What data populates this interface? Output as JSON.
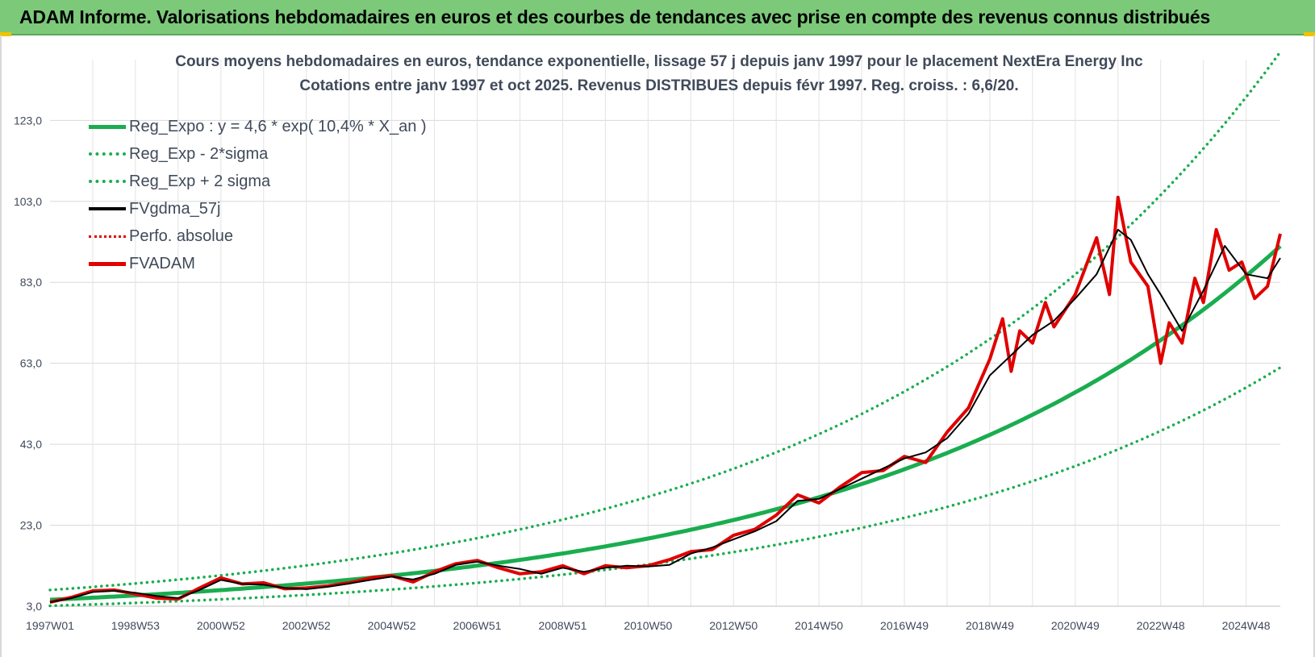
{
  "header": {
    "title": "ADAM Informe. Valorisations hebdomadaires en euros et des courbes de tendances avec prise en compte des revenus connus distribués"
  },
  "chart_data": {
    "type": "line",
    "title": "Cours moyens hebdomadaires en euros, tendance exponentielle, lissage 57 j depuis janv 1997 pour le placement NextEra Energy Inc",
    "subtitle": "Cotations entre janv 1997 et oct 2025. Revenus DISTRIBUES depuis févr 1997. Reg. croiss. : 6,6/20.",
    "xlabel": "",
    "ylabel": "",
    "ylim": [
      3.0,
      138.0
    ],
    "xlim": [
      1997.0,
      2025.8
    ],
    "grid": true,
    "legend_position": "top-left",
    "y_ticks": [
      "3,0",
      "23,0",
      "43,0",
      "63,0",
      "83,0",
      "103,0",
      "123,0"
    ],
    "x_ticks": [
      "1997W01",
      "1998W53",
      "2000W52",
      "2002W52",
      "2004W52",
      "2006W51",
      "2008W51",
      "2010W50",
      "2012W50",
      "2014W50",
      "2016W49",
      "2018W49",
      "2020W49",
      "2022W48",
      "2024W48"
    ],
    "series": [
      {
        "name": "Reg_Expo : y = 4,6 * exp( 10,4% *  X_an )",
        "style": "solid-thick",
        "color": "#1aad4f",
        "formula": {
          "a": 4.6,
          "rate": 0.104
        }
      },
      {
        "name": "Reg_Exp - 2*sigma",
        "style": "dotted",
        "color": "#1aad4f",
        "formula": {
          "a": 3.1,
          "rate": 0.104
        }
      },
      {
        "name": "Reg_Exp + 2 sigma",
        "style": "dotted",
        "color": "#1aad4f",
        "formula": {
          "a": 7.0,
          "rate": 0.104
        }
      },
      {
        "name": "FVgdma_57j",
        "style": "solid",
        "color": "#000000",
        "x": [
          1997.0,
          1997.5,
          1998.0,
          1998.5,
          1999.0,
          1999.5,
          2000.0,
          2000.5,
          2001.0,
          2001.5,
          2002.0,
          2002.5,
          2003.0,
          2003.5,
          2004.0,
          2004.5,
          2005.0,
          2005.5,
          2006.0,
          2006.5,
          2007.0,
          2007.5,
          2008.0,
          2008.5,
          2009.0,
          2009.5,
          2010.0,
          2010.5,
          2011.0,
          2011.5,
          2012.0,
          2012.5,
          2013.0,
          2013.5,
          2014.0,
          2014.5,
          2015.0,
          2015.5,
          2016.0,
          2016.5,
          2017.0,
          2017.5,
          2018.0,
          2018.5,
          2019.0,
          2019.5,
          2020.0,
          2020.5,
          2021.0,
          2021.5,
          2022.0,
          2022.3,
          2022.7,
          2023.0,
          2023.5,
          2024.0,
          2024.5,
          2025.0,
          2025.5,
          2025.8
        ],
        "values": [
          4.0,
          5.0,
          6.5,
          6.8,
          6.3,
          5.5,
          5.0,
          7.0,
          9.5,
          8.5,
          8.3,
          7.5,
          7.2,
          7.8,
          8.6,
          9.5,
          10.3,
          9.6,
          11.0,
          13.2,
          14.0,
          13.0,
          12.2,
          11.0,
          12.5,
          11.5,
          12.5,
          13.0,
          12.8,
          13.2,
          16.0,
          17.5,
          19.5,
          21.5,
          24.0,
          29.0,
          29.5,
          32.0,
          34.5,
          37.0,
          39.5,
          41.0,
          44.5,
          50.5,
          60.0,
          65.0,
          70.0,
          73.5,
          79.0,
          85.0,
          96.0,
          93.5,
          85.0,
          80.0,
          71.0,
          81.0,
          92.0,
          85.0,
          84.0,
          89.0
        ]
      },
      {
        "name": "Perfo. absolue",
        "style": "dotted",
        "color": "#e00000",
        "x": [],
        "values": []
      },
      {
        "name": "FVADAM",
        "style": "solid-thick",
        "color": "#e00000",
        "x": [
          1997.0,
          1997.5,
          1998.0,
          1998.5,
          1999.0,
          1999.5,
          2000.0,
          2000.5,
          2001.0,
          2001.5,
          2002.0,
          2002.5,
          2003.0,
          2003.5,
          2004.0,
          2004.5,
          2005.0,
          2005.5,
          2006.0,
          2006.5,
          2007.0,
          2007.5,
          2008.0,
          2008.5,
          2009.0,
          2009.5,
          2010.0,
          2010.5,
          2011.0,
          2011.5,
          2012.0,
          2012.5,
          2013.0,
          2013.5,
          2014.0,
          2014.5,
          2015.0,
          2015.5,
          2016.0,
          2016.5,
          2017.0,
          2017.5,
          2018.0,
          2018.5,
          2019.0,
          2019.3,
          2019.5,
          2019.7,
          2020.0,
          2020.3,
          2020.5,
          2021.0,
          2021.5,
          2021.8,
          2022.0,
          2022.3,
          2022.7,
          2023.0,
          2023.2,
          2023.5,
          2023.8,
          2024.0,
          2024.3,
          2024.6,
          2024.9,
          2025.2,
          2025.5,
          2025.8
        ],
        "values": [
          4.0,
          5.2,
          6.8,
          7.0,
          6.0,
          5.0,
          4.8,
          7.5,
          10.0,
          8.5,
          8.8,
          7.3,
          7.5,
          8.0,
          8.8,
          10.0,
          10.5,
          9.0,
          11.5,
          13.5,
          14.3,
          12.5,
          11.0,
          11.5,
          13.0,
          11.0,
          13.0,
          12.5,
          13.0,
          14.5,
          16.5,
          17.0,
          20.5,
          22.0,
          25.5,
          30.5,
          28.5,
          32.5,
          36.0,
          36.5,
          40.0,
          38.5,
          46.0,
          52.0,
          64.0,
          74.0,
          61.0,
          71.0,
          68.0,
          78.0,
          72.0,
          80.0,
          94.0,
          80.0,
          104.0,
          88.0,
          82.0,
          63.0,
          73.0,
          68.0,
          84.0,
          78.0,
          96.0,
          86.0,
          88.0,
          79.0,
          82.0,
          95.0
        ]
      }
    ]
  }
}
